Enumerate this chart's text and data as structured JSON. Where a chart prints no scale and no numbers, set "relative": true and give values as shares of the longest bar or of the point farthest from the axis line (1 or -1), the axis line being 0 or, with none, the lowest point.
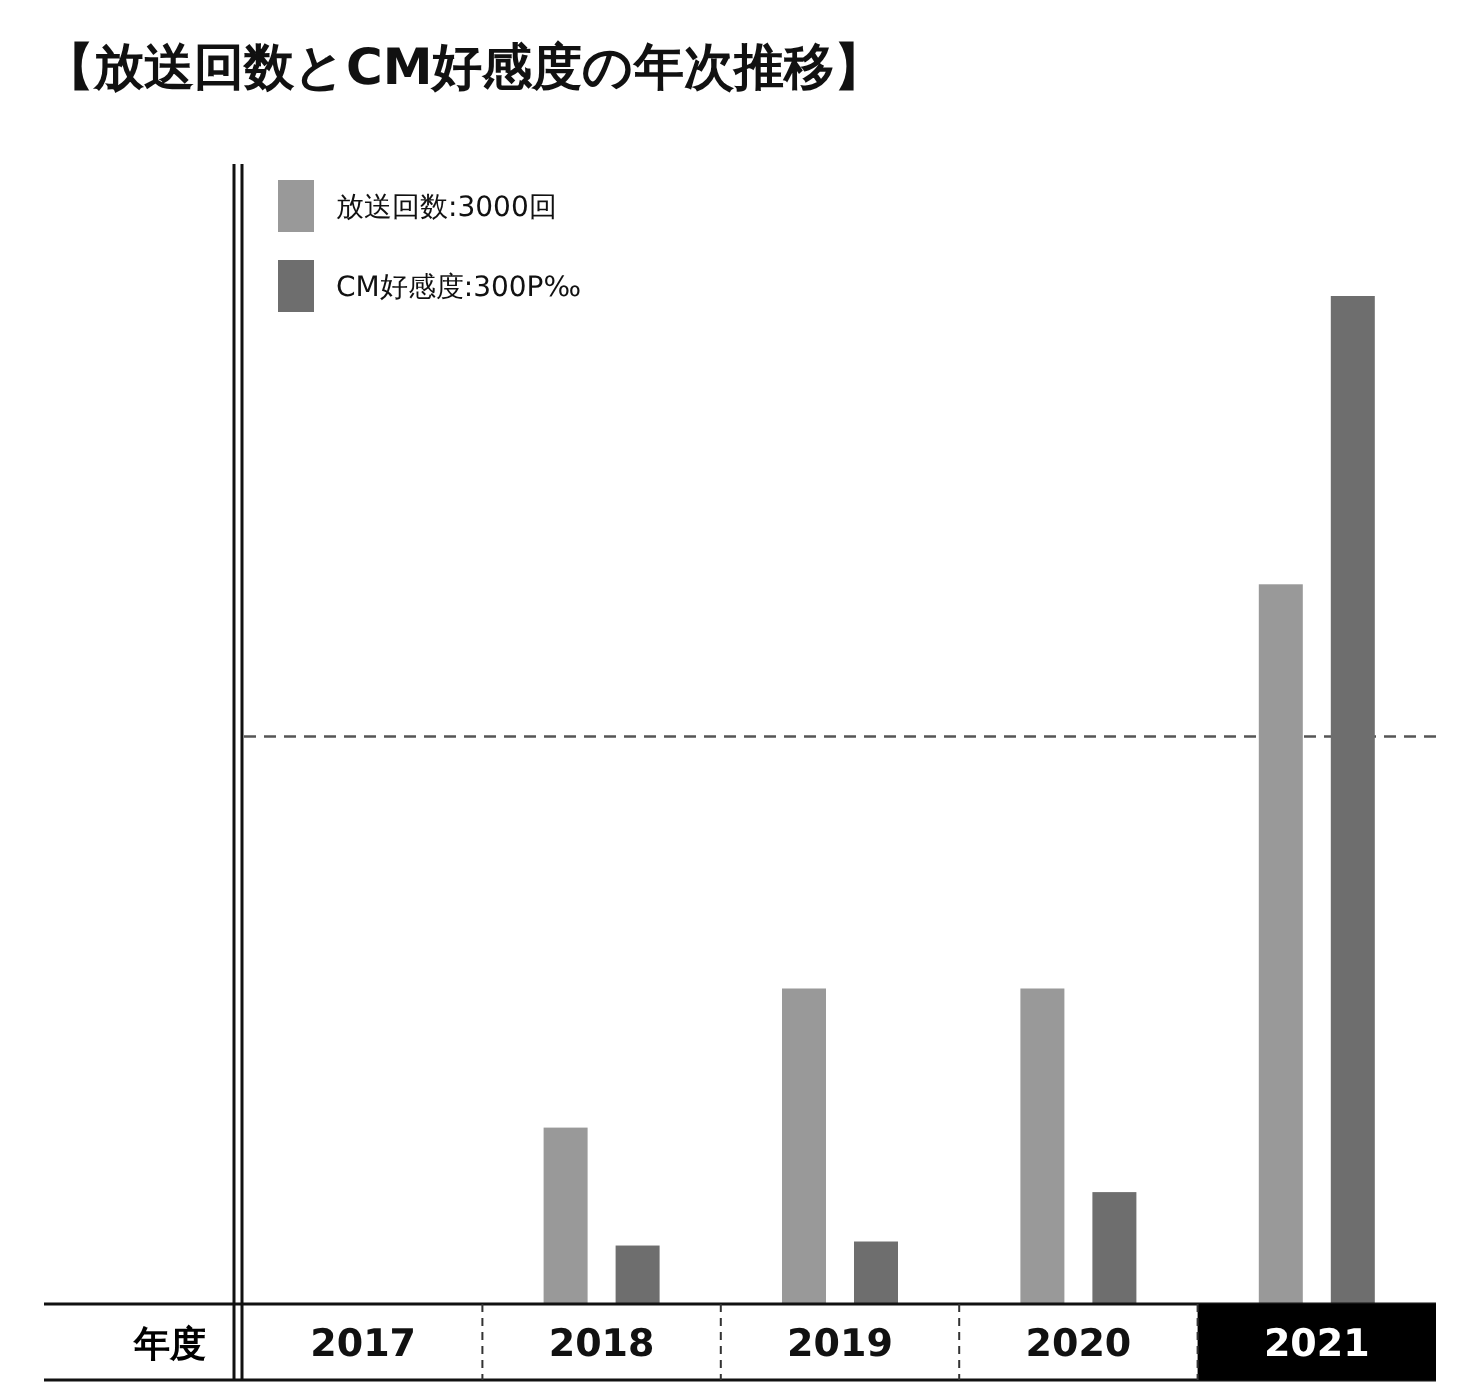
{
  "chart_data": {
    "type": "bar",
    "title": "【放送回数とCM好感度の年次推移】",
    "xlabel": "年度",
    "relative": true,
    "categories": [
      "2017",
      "2018",
      "2019",
      "2020",
      "2021"
    ],
    "series": [
      {
        "name": "放送回数:3000回",
        "color": "#999999",
        "values": [
          0,
          0.175,
          0.313,
          0.313,
          0.714
        ]
      },
      {
        "name": "CM好感度:300P‰",
        "color": "#6e6e6e",
        "values": [
          0,
          0.058,
          0.062,
          0.111,
          1
        ]
      }
    ],
    "ref_lines": [
      {
        "axis": "y",
        "value": 0.563,
        "color": "#555555",
        "line_style": "dashed"
      }
    ],
    "legend": "top left",
    "grid": false
  }
}
